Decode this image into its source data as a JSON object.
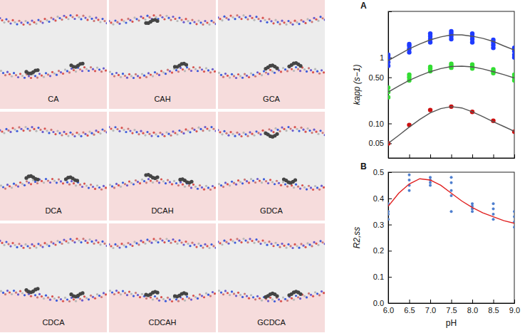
{
  "snapshots": {
    "labels": [
      "CA",
      "CAH",
      "GCA",
      "DCA",
      "DCAH",
      "GDCA",
      "CDCA",
      "CDCAH",
      "GCDCA"
    ]
  },
  "chart_data": [
    {
      "type": "scatter",
      "title": "A",
      "y_label": "kapp (s−1)",
      "log": "y",
      "grid": false,
      "tick_labels": "y",
      "xlim": [
        6,
        9
      ],
      "xticks": [
        6,
        6.5,
        7,
        7.5,
        8,
        8.5,
        9
      ],
      "ylim": [
        0.03,
        5
      ],
      "yticks": [
        0.05,
        {
          "value": 0.1,
          "label": "0.10"
        },
        {
          "value": 0.5,
          "label": "0.50"
        },
        1
      ],
      "series": [
        {
          "type": "scatter",
          "color": "#1f3bff",
          "marker": "circle",
          "x": [
            6,
            6,
            6,
            6,
            6,
            6.5,
            6.5,
            6.5,
            6.5,
            7,
            7,
            7,
            7,
            7.5,
            7.5,
            7.5,
            7.5,
            8,
            8,
            8,
            8,
            8.5,
            8.5,
            8.5,
            8.5,
            9,
            9,
            9,
            9
          ],
          "values": [
            0.75,
            0.85,
            0.95,
            1.05,
            1.1,
            1.2,
            1.35,
            1.5,
            1.6,
            1.7,
            1.9,
            2.1,
            2.3,
            1.9,
            2.1,
            2.3,
            2.5,
            1.7,
            1.9,
            2.1,
            2.3,
            1.4,
            1.55,
            1.7,
            1.85,
            1.0,
            1.1,
            1.25,
            1.4
          ]
        },
        {
          "type": "scatter",
          "color": "#33dd33",
          "marker": "circle",
          "x": [
            6,
            6,
            6,
            6.5,
            6.5,
            6.5,
            7,
            7,
            7,
            7.5,
            7.5,
            7.5,
            8,
            8,
            8,
            8.5,
            8.5,
            8.5,
            9,
            9,
            9
          ],
          "values": [
            0.25,
            0.3,
            0.35,
            0.45,
            0.5,
            0.55,
            0.62,
            0.68,
            0.72,
            0.7,
            0.75,
            0.8,
            0.68,
            0.73,
            0.78,
            0.58,
            0.62,
            0.66,
            0.45,
            0.5,
            0.55
          ]
        },
        {
          "type": "scatter",
          "color": "#cc1111",
          "marker": "circle",
          "x": [
            6,
            6.5,
            7,
            7.5,
            8,
            8.5,
            9
          ],
          "values": [
            0.05,
            0.095,
            0.16,
            0.18,
            0.15,
            0.11,
            0.075
          ]
        },
        {
          "type": "line",
          "color": "#555555",
          "line_style": "solid",
          "x": [
            6,
            6.25,
            6.5,
            6.75,
            7,
            7.25,
            7.5,
            7.75,
            8,
            8.25,
            8.5,
            8.75,
            9
          ],
          "values": [
            0.9,
            1.1,
            1.35,
            1.6,
            1.85,
            2.05,
            2.2,
            2.2,
            2.1,
            1.95,
            1.75,
            1.5,
            1.3
          ]
        },
        {
          "type": "line",
          "color": "#555555",
          "line_style": "solid",
          "x": [
            6,
            6.25,
            6.5,
            6.75,
            7,
            7.25,
            7.5,
            7.75,
            8,
            8.25,
            8.5,
            8.75,
            9
          ],
          "values": [
            0.3,
            0.37,
            0.45,
            0.53,
            0.61,
            0.68,
            0.73,
            0.74,
            0.72,
            0.67,
            0.61,
            0.55,
            0.49
          ]
        },
        {
          "type": "line",
          "color": "#555555",
          "line_style": "solid",
          "x": [
            6,
            6.25,
            6.5,
            6.75,
            7,
            7.25,
            7.5,
            7.75,
            8,
            8.25,
            8.5,
            8.75,
            9
          ],
          "values": [
            0.05,
            0.066,
            0.088,
            0.115,
            0.145,
            0.168,
            0.18,
            0.172,
            0.15,
            0.127,
            0.106,
            0.09,
            0.076
          ]
        }
      ]
    },
    {
      "type": "scatter",
      "title": "B",
      "x_label": "pH",
      "y_label": "R2,ss",
      "grid": false,
      "xlim": [
        6,
        9
      ],
      "xticks": [
        {
          "value": 6,
          "label": "6.0"
        },
        6.5,
        {
          "value": 7,
          "label": "7.0"
        },
        7.5,
        {
          "value": 8,
          "label": "8.0"
        },
        8.5,
        {
          "value": 9,
          "label": "9.0"
        }
      ],
      "ylim": [
        0,
        0.5
      ],
      "yticks": [
        {
          "value": 0,
          "label": "0.0"
        },
        0.1,
        0.2,
        0.3,
        0.4,
        0.5
      ],
      "series": [
        {
          "type": "scatter",
          "color": "#4f7fcf",
          "marker": "point",
          "x": [
            6,
            6,
            6,
            6,
            6.5,
            6.5,
            6.5,
            6.5,
            7,
            7,
            7,
            7,
            7.5,
            7.5,
            7.5,
            7.5,
            7.5,
            8,
            8,
            8,
            8,
            8.5,
            8.5,
            8.5,
            8.5,
            9,
            9,
            9,
            9
          ],
          "values": [
            0.32,
            0.34,
            0.35,
            0.38,
            0.43,
            0.45,
            0.47,
            0.49,
            0.45,
            0.46,
            0.47,
            0.48,
            0.35,
            0.41,
            0.43,
            0.46,
            0.48,
            0.35,
            0.36,
            0.37,
            0.38,
            0.32,
            0.34,
            0.36,
            0.38,
            0.29,
            0.31,
            0.33,
            0.35
          ]
        },
        {
          "type": "line",
          "color": "#e02020",
          "line_style": "solid",
          "x": [
            6,
            6.25,
            6.5,
            6.75,
            7,
            7.25,
            7.5,
            7.75,
            8,
            8.25,
            8.5,
            8.75,
            9
          ],
          "values": [
            0.37,
            0.42,
            0.455,
            0.475,
            0.47,
            0.45,
            0.42,
            0.39,
            0.365,
            0.345,
            0.33,
            0.315,
            0.305
          ]
        }
      ]
    }
  ]
}
